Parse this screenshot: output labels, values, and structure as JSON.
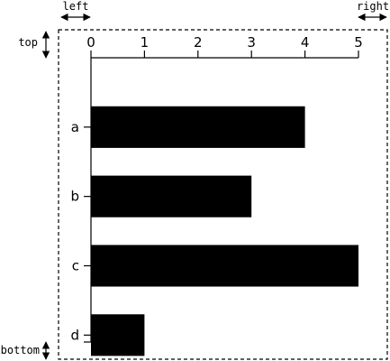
{
  "margin_labels": {
    "left": "left",
    "right": "right",
    "top": "top",
    "bottom": "bottom"
  },
  "chart_data": {
    "type": "bar",
    "orientation": "horizontal",
    "categories": [
      "a",
      "b",
      "c",
      "d"
    ],
    "values": [
      4,
      3,
      5,
      1
    ],
    "x_ticks": [
      0,
      1,
      2,
      3,
      4,
      5
    ],
    "xlim": [
      0,
      5
    ],
    "x_axis_position": "top",
    "grid": false,
    "bar_color": "#000000"
  }
}
